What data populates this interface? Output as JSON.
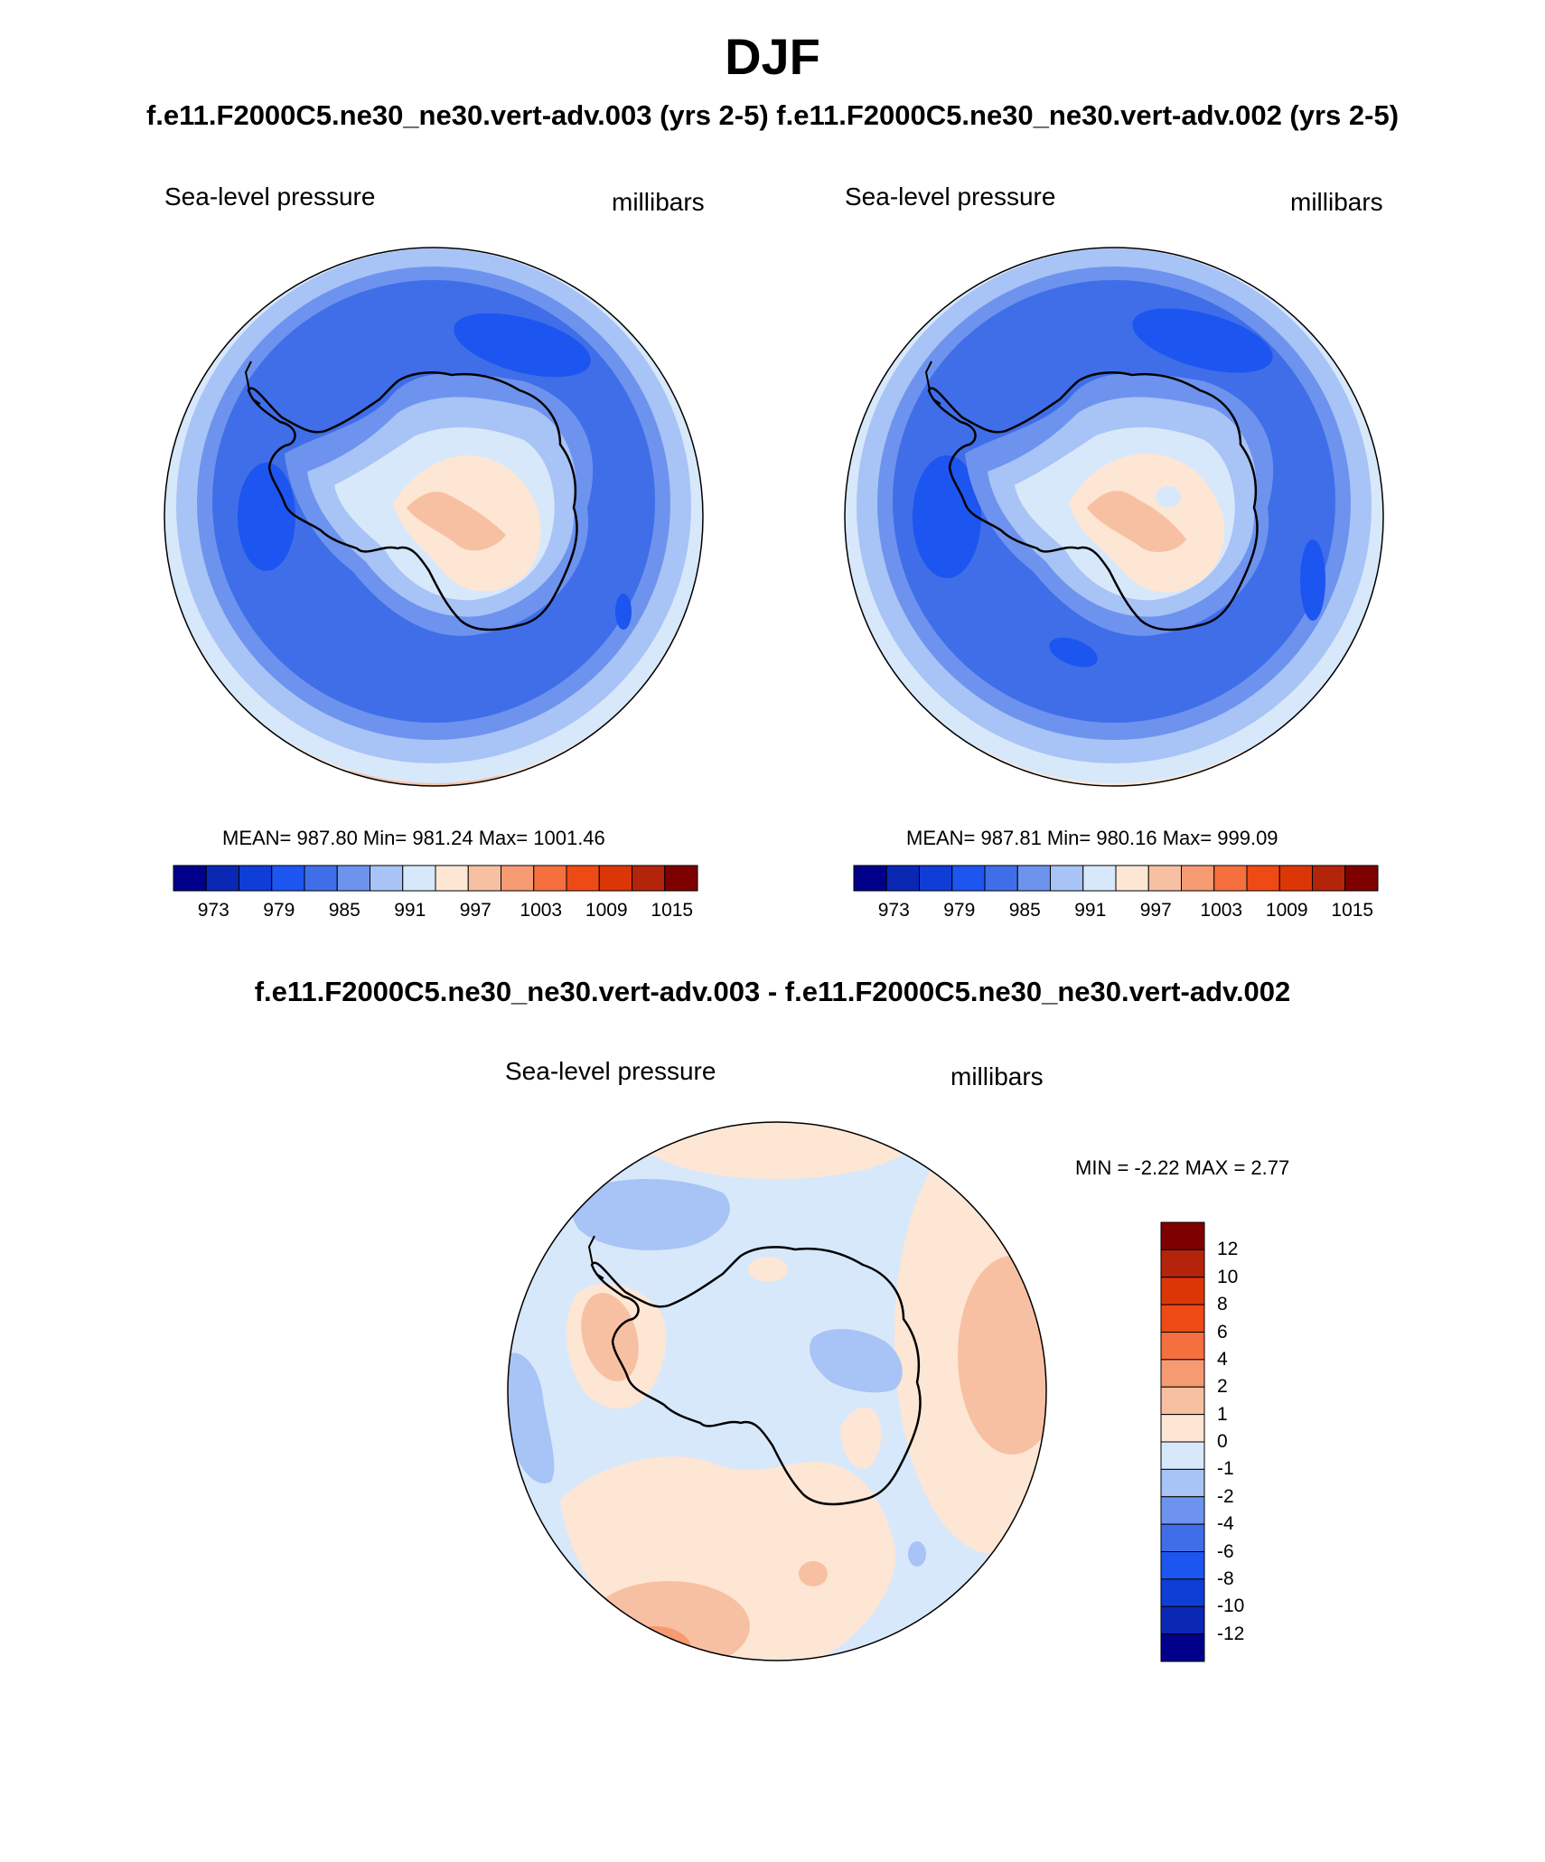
{
  "figure": {
    "season": "DJF",
    "case_titles": "f.e11.F2000C5.ne30_ne30.vert-adv.003 (yrs 2-5)  f.e11.F2000C5.ne30_ne30.vert-adv.002 (yrs 2-5)",
    "diff_title": "f.e11.F2000C5.ne30_ne30.vert-adv.003 - f.e11.F2000C5.ne30_ne30.vert-adv.002"
  },
  "panels": {
    "left": {
      "variable": "Sea-level pressure",
      "units": "millibars",
      "stats": "MEAN= 987.80  Min= 981.24  Max= 1001.46"
    },
    "right": {
      "variable": "Sea-level pressure",
      "units": "millibars",
      "stats": "MEAN= 987.81  Min= 980.16  Max= 999.09"
    },
    "diff": {
      "variable": "Sea-level pressure",
      "units": "millibars",
      "stats": "MIN =  -2.22 MAX =   2.77"
    }
  },
  "colorbars": {
    "absolute": {
      "colors": [
        "#00008b",
        "#0a28b4",
        "#0f3ed6",
        "#1d55f0",
        "#3f6ee8",
        "#6d93ee",
        "#a8c3f5",
        "#d8e8fb",
        "#fde6d3",
        "#f8c0a2",
        "#f69a72",
        "#f56f3f",
        "#ee4a16",
        "#dd3606",
        "#b4240a",
        "#7f0000"
      ],
      "tick_labels": [
        "973",
        "979",
        "985",
        "991",
        "997",
        "1003",
        "1009",
        "1015"
      ]
    },
    "difference": {
      "colors": [
        "#00008b",
        "#0a28b4",
        "#0f3ed6",
        "#1d55f0",
        "#3f6ee8",
        "#6d93ee",
        "#a8c3f5",
        "#d8e8fb",
        "#fde6d3",
        "#f8c0a2",
        "#f69a72",
        "#f56f3f",
        "#ee4a16",
        "#dd3606",
        "#b4240a",
        "#7f0000"
      ],
      "tick_labels": [
        "12",
        "10",
        "8",
        "6",
        "4",
        "2",
        "1",
        "0",
        "-1",
        "-2",
        "-4",
        "-6",
        "-8",
        "-10",
        "-12"
      ]
    }
  }
}
